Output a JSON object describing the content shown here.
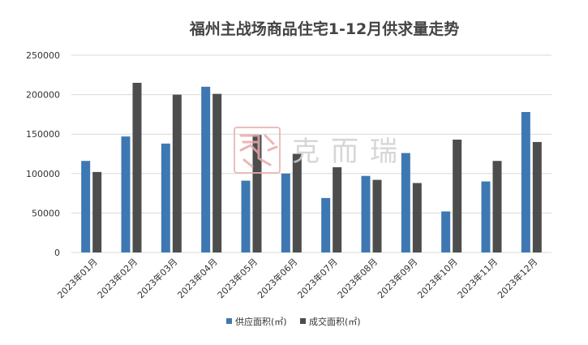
{
  "chart_data": {
    "type": "bar",
    "title": "福州主战场商品住宅1-12月供求量走势",
    "categories": [
      "2023年01月",
      "2023年02月",
      "2023年03月",
      "2023年04月",
      "2023年05月",
      "2023年06月",
      "2023年07月",
      "2023年08月",
      "2023年09月",
      "2023年10月",
      "2023年11月",
      "2023年12月"
    ],
    "series": [
      {
        "name": "供应面积(㎡)",
        "color": "#3e78b2",
        "values": [
          116000,
          147000,
          138000,
          210000,
          91000,
          100000,
          69000,
          97000,
          126000,
          52000,
          90000,
          178000
        ]
      },
      {
        "name": "成交面积(㎡)",
        "color": "#4d4d4d",
        "values": [
          102000,
          215000,
          200000,
          201000,
          149000,
          125000,
          108000,
          92000,
          88000,
          143000,
          116000,
          140000
        ]
      }
    ],
    "y_ticks": [
      "0",
      "50000",
      "100000",
      "150000",
      "200000",
      "250000"
    ],
    "ylim": [
      0,
      250000
    ],
    "grid": true,
    "legend_position": "bottom-center",
    "watermark_text": "克而瑞"
  }
}
